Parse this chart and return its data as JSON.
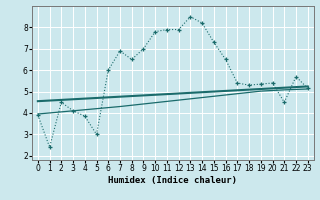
{
  "xlabel": "Humidex (Indice chaleur)",
  "xlim": [
    -0.5,
    23.5
  ],
  "ylim": [
    1.8,
    9.0
  ],
  "yticks": [
    2,
    3,
    4,
    5,
    6,
    7,
    8
  ],
  "xticks": [
    0,
    1,
    2,
    3,
    4,
    5,
    6,
    7,
    8,
    9,
    10,
    11,
    12,
    13,
    14,
    15,
    16,
    17,
    18,
    19,
    20,
    21,
    22,
    23
  ],
  "bg_color": "#cce8ed",
  "grid_color": "#b0d4d8",
  "line_color": "#1a6b6b",
  "curve1_x": [
    0,
    1,
    2,
    3,
    4,
    5,
    6,
    7,
    8,
    9,
    10,
    11,
    12,
    13,
    14,
    15,
    16,
    17,
    18,
    19,
    20,
    21,
    22,
    23
  ],
  "curve1_y": [
    3.9,
    2.4,
    4.5,
    4.1,
    3.85,
    3.0,
    6.0,
    6.9,
    6.5,
    7.0,
    7.8,
    7.9,
    7.9,
    8.5,
    8.2,
    7.3,
    6.5,
    5.4,
    5.3,
    5.35,
    5.4,
    4.5,
    5.7,
    5.15
  ],
  "curve2_x": [
    0,
    1,
    2,
    3,
    4,
    5,
    6,
    7,
    8,
    9,
    10,
    11,
    12,
    13,
    14,
    15,
    16,
    17,
    18,
    19,
    20,
    21,
    22,
    23
  ],
  "curve2_y": [
    4.55,
    4.58,
    4.61,
    4.64,
    4.67,
    4.7,
    4.73,
    4.76,
    4.79,
    4.82,
    4.85,
    4.88,
    4.91,
    4.94,
    4.97,
    5.0,
    5.03,
    5.06,
    5.09,
    5.12,
    5.15,
    5.18,
    5.21,
    5.24
  ],
  "curve3_x": [
    0,
    1,
    2,
    3,
    4,
    5,
    6,
    7,
    8,
    9,
    10,
    11,
    12,
    13,
    14,
    15,
    16,
    17,
    18,
    19,
    20,
    21,
    22,
    23
  ],
  "curve3_y": [
    3.95,
    4.0,
    4.05,
    4.1,
    4.15,
    4.2,
    4.25,
    4.3,
    4.36,
    4.42,
    4.48,
    4.54,
    4.6,
    4.66,
    4.72,
    4.78,
    4.84,
    4.9,
    4.96,
    5.02,
    5.05,
    5.08,
    5.1,
    5.12
  ]
}
